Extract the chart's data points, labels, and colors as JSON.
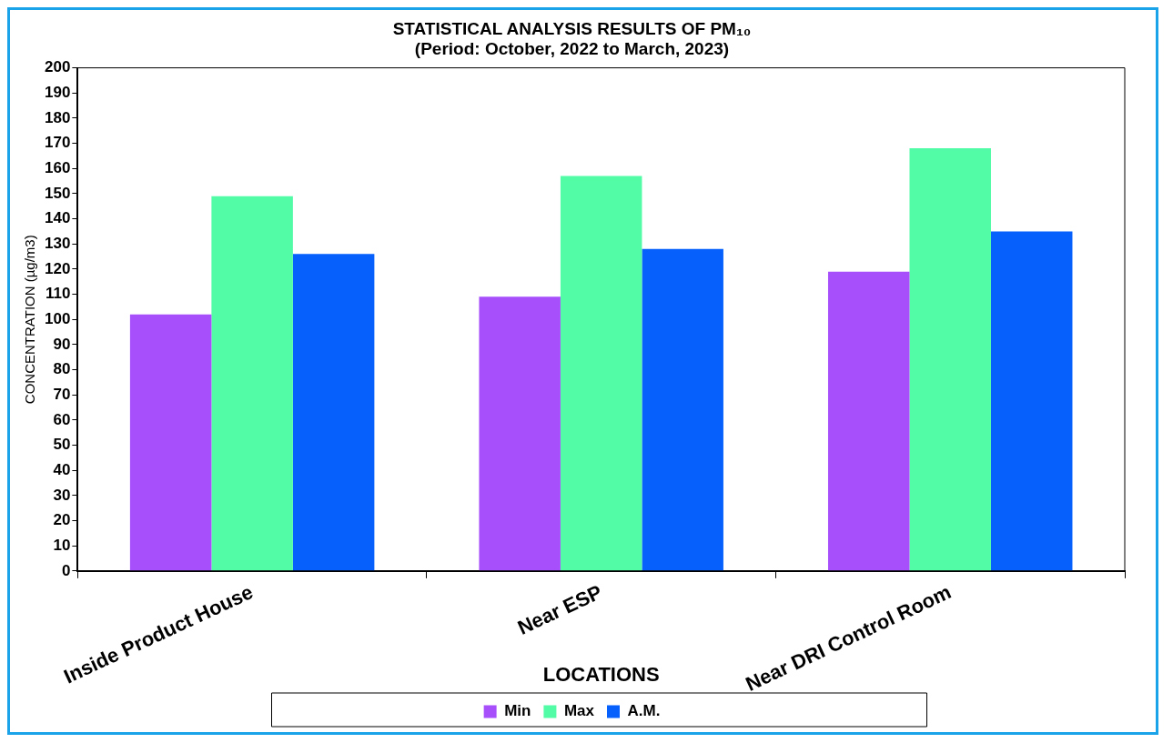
{
  "chart_data": {
    "type": "bar",
    "title": [
      "STATISTICAL ANALYSIS RESULTS OF PM₁₀",
      "(Period: October, 2022 to March, 2023)"
    ],
    "xlabel": "LOCATIONS",
    "ylabel": "CONCENTRATION (µg/m3)",
    "categories": [
      "Inside Product House",
      "Near ESP",
      "Near DRI Control Room"
    ],
    "series": [
      {
        "name": "Min",
        "color": "#a64ffb",
        "values": [
          102,
          109,
          119
        ]
      },
      {
        "name": "Max",
        "color": "#52fba6",
        "values": [
          149,
          157,
          168
        ]
      },
      {
        "name": "A.M.",
        "color": "#0560fc",
        "values": [
          126,
          128,
          135
        ]
      }
    ],
    "ylim": [
      0,
      200
    ],
    "yticks": [
      0,
      10,
      20,
      30,
      40,
      50,
      60,
      70,
      80,
      90,
      100,
      110,
      120,
      130,
      140,
      150,
      160,
      170,
      180,
      190,
      200
    ],
    "grid": false,
    "legend": "bottom"
  }
}
